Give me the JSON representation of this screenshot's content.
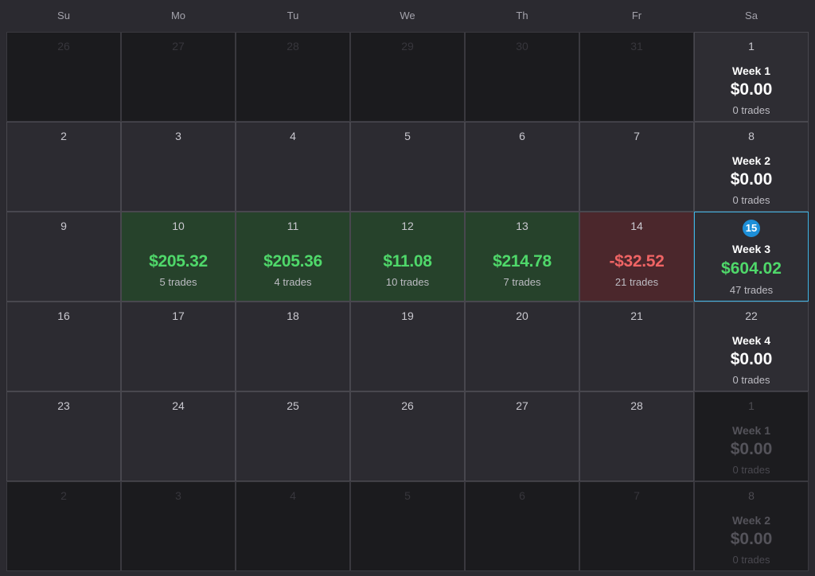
{
  "weekdays": [
    "Su",
    "Mo",
    "Tu",
    "We",
    "Th",
    "Fr",
    "Sa"
  ],
  "colors": {
    "profit": "#4fd86a",
    "loss": "#ef6464",
    "today_badge": "#1d8fd8",
    "selected_border": "#3fb3e4"
  },
  "weeks": [
    {
      "days": [
        {
          "day": "26",
          "outside": true
        },
        {
          "day": "27",
          "outside": true
        },
        {
          "day": "28",
          "outside": true
        },
        {
          "day": "29",
          "outside": true
        },
        {
          "day": "30",
          "outside": true
        },
        {
          "day": "31",
          "outside": true
        }
      ],
      "summary": {
        "day": "1",
        "label": "Week 1",
        "amount": "$0.00",
        "trades": "0 trades",
        "outside": false
      }
    },
    {
      "days": [
        {
          "day": "2"
        },
        {
          "day": "3"
        },
        {
          "day": "4"
        },
        {
          "day": "5"
        },
        {
          "day": "6"
        },
        {
          "day": "7"
        }
      ],
      "summary": {
        "day": "8",
        "label": "Week 2",
        "amount": "$0.00",
        "trades": "0 trades",
        "outside": false
      }
    },
    {
      "days": [
        {
          "day": "9"
        },
        {
          "day": "10",
          "amount": "$205.32",
          "trades": "5 trades",
          "status": "pos"
        },
        {
          "day": "11",
          "amount": "$205.36",
          "trades": "4 trades",
          "status": "pos"
        },
        {
          "day": "12",
          "amount": "$11.08",
          "trades": "10 trades",
          "status": "pos"
        },
        {
          "day": "13",
          "amount": "$214.78",
          "trades": "7 trades",
          "status": "pos"
        },
        {
          "day": "14",
          "amount": "-$32.52",
          "trades": "21 trades",
          "status": "neg"
        }
      ],
      "summary": {
        "day": "15",
        "label": "Week 3",
        "amount": "$604.02",
        "trades": "47 trades",
        "outside": false,
        "today": true,
        "status": "pos"
      }
    },
    {
      "days": [
        {
          "day": "16"
        },
        {
          "day": "17"
        },
        {
          "day": "18"
        },
        {
          "day": "19"
        },
        {
          "day": "20"
        },
        {
          "day": "21"
        }
      ],
      "summary": {
        "day": "22",
        "label": "Week 4",
        "amount": "$0.00",
        "trades": "0 trades",
        "outside": false
      }
    },
    {
      "days": [
        {
          "day": "23"
        },
        {
          "day": "24"
        },
        {
          "day": "25"
        },
        {
          "day": "26"
        },
        {
          "day": "27"
        },
        {
          "day": "28"
        }
      ],
      "summary": {
        "day": "1",
        "label": "Week 1",
        "amount": "$0.00",
        "trades": "0 trades",
        "outside": true
      }
    },
    {
      "days": [
        {
          "day": "2",
          "outside": true
        },
        {
          "day": "3",
          "outside": true
        },
        {
          "day": "4",
          "outside": true
        },
        {
          "day": "5",
          "outside": true
        },
        {
          "day": "6",
          "outside": true
        },
        {
          "day": "7",
          "outside": true
        }
      ],
      "summary": {
        "day": "8",
        "label": "Week 2",
        "amount": "$0.00",
        "trades": "0 trades",
        "outside": true
      }
    }
  ]
}
